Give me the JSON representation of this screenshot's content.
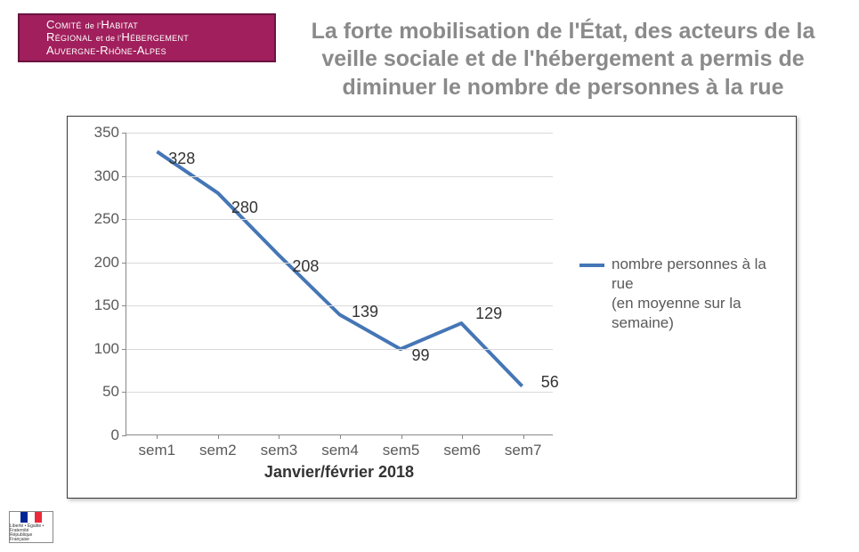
{
  "logo": {
    "line1_a": "Comité",
    "line1_b": "de l'",
    "line1_c": "Habitat",
    "line2_a": "Régional",
    "line2_b": "et de l'",
    "line2_c": "Hébergement",
    "line3": "Auvergne-Rhône-Alpes",
    "bg_color": "#a01f5c",
    "border_color": "#6b1340",
    "text_color": "#ffffff"
  },
  "title": "La forte mobilisation de l'État, des acteurs de la veille sociale et de l'hébergement a permis de diminuer le nombre de personnes à la rue",
  "title_color": "#8a8a8a",
  "title_fontsize": 25,
  "chart": {
    "type": "line",
    "categories": [
      "sem1",
      "sem2",
      "sem3",
      "sem4",
      "sem5",
      "sem6",
      "sem7"
    ],
    "values": [
      328,
      280,
      208,
      139,
      99,
      129,
      56
    ],
    "ylim": [
      0,
      350
    ],
    "ytick_step": 50,
    "yticks": [
      0,
      50,
      100,
      150,
      200,
      250,
      300,
      350
    ],
    "line_color": "#4576b6",
    "line_width": 4,
    "grid_color": "#d9d9d9",
    "axis_color": "#888888",
    "background_color": "#ffffff",
    "tick_font_color": "#5a5a5a",
    "tick_fontsize": 17,
    "data_label_fontsize": 18,
    "data_label_color": "#333333",
    "x_axis_title": "Janvier/février 2018",
    "x_axis_title_fontsize": 18,
    "legend_text": "nombre personnes à la rue\n (en moyenne sur la semaine)",
    "legend_fontsize": 17
  },
  "footer_logo": {
    "motto": "Liberté • Égalité • Fraternité",
    "subtitle": "République Française",
    "blue": "#002395",
    "white": "#ffffff",
    "red": "#ed2939"
  }
}
